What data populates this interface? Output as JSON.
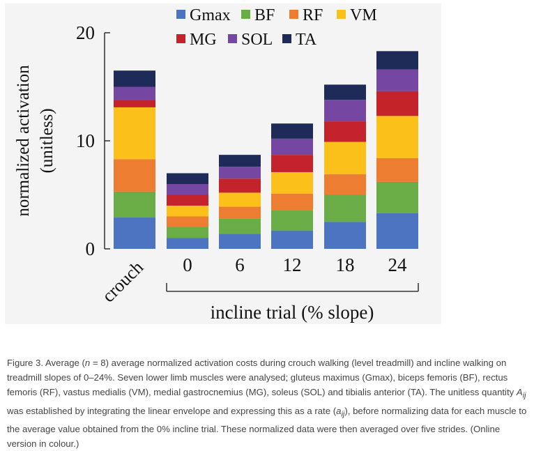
{
  "chart_data": {
    "type": "bar",
    "stacked": true,
    "categories": [
      "crouch",
      "0",
      "6",
      "12",
      "18",
      "24"
    ],
    "series": [
      {
        "name": "Gmax",
        "color": "#4c74c0",
        "values": [
          2.9,
          1.0,
          1.4,
          1.7,
          2.5,
          3.3
        ]
      },
      {
        "name": "BF",
        "color": "#6aac45",
        "values": [
          2.4,
          1.0,
          1.4,
          1.9,
          2.5,
          2.9
        ]
      },
      {
        "name": "RF",
        "color": "#ed7d31",
        "values": [
          3.0,
          1.0,
          1.1,
          1.5,
          1.9,
          2.2
        ]
      },
      {
        "name": "VM",
        "color": "#fcc01a",
        "values": [
          4.8,
          1.0,
          1.3,
          2.0,
          3.0,
          3.9
        ]
      },
      {
        "name": "MG",
        "color": "#c4232b",
        "values": [
          0.7,
          1.0,
          1.3,
          1.6,
          1.9,
          2.3
        ]
      },
      {
        "name": "SOL",
        "color": "#7646a3",
        "values": [
          1.2,
          1.0,
          1.1,
          1.5,
          2.0,
          2.0
        ]
      },
      {
        "name": "TA",
        "color": "#1e2a57",
        "values": [
          1.5,
          1.0,
          1.1,
          1.4,
          1.4,
          1.7
        ]
      }
    ],
    "ylabel": "normalized activation (unitless)",
    "xlabel": "incline trial (% slope)",
    "ylim": [
      0,
      20
    ],
    "yticks": [
      0,
      10,
      20
    ],
    "grid": false,
    "legend": "top"
  },
  "caption": {
    "prefix": "Figure 3. Average (",
    "n_italic": "n",
    "after_n": " = 8) average normalized activation costs during crouch walking (level treadmill) and incline walking on treadmill slopes of 0–24%. Seven lower limb muscles were analysed; gluteus maximus (Gmax), biceps femoris (BF), rectus femoris (RF), vastus medialis (VM), medial gastrocnemius (MG), soleus (SOL) and tibialis anterior (TA). The unitless quantity ",
    "A_italic": "A",
    "A_sub": "ij",
    "middle": " was established by integrating the linear envelope and expressing this as a rate (",
    "a_italic": "a",
    "a_sub": "ij",
    "suffix": "), before normalizing data for each muscle to the average value obtained from the 0% incline trial. These normalized data were then averaged over five strides. (Online version in colour.)"
  }
}
